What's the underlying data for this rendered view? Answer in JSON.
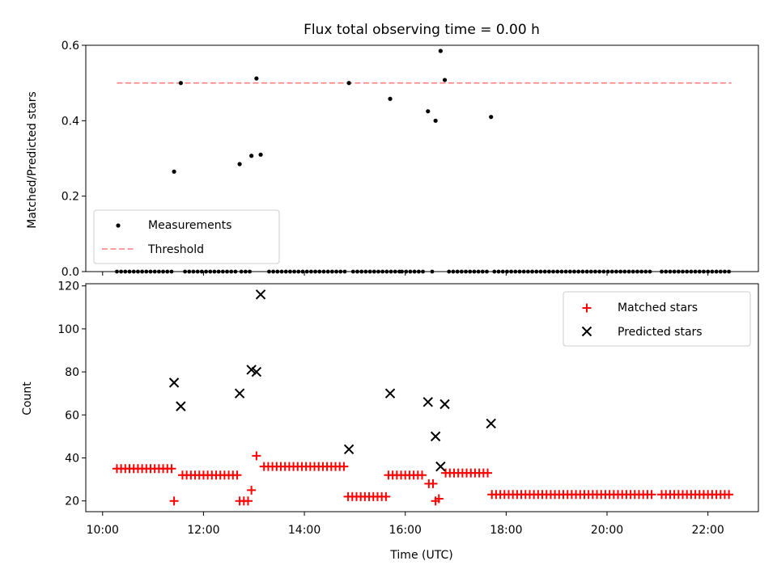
{
  "chart_data": [
    {
      "type": "scatter",
      "title": "Flux total observing time = 0.00 h",
      "xlabel": "",
      "ylabel": "Matched/Predicted stars",
      "xlim": [
        "09:40",
        "23:00"
      ],
      "ylim": [
        0,
        0.6
      ],
      "yticks": [
        "0.0",
        "0.2",
        "0.4",
        "0.6"
      ],
      "legend": {
        "position": "lower-left",
        "entries": [
          {
            "label": "Measurements",
            "marker": "dot",
            "color": "#000000"
          },
          {
            "label": "Threshold",
            "marker": "dashed-line",
            "color": "#ff7f7f"
          }
        ]
      },
      "series": [
        {
          "name": "Measurements",
          "color": "#000000",
          "points": [
            [
              "11:25",
              0.265
            ],
            [
              "11:33",
              0.5
            ],
            [
              "12:43",
              0.285
            ],
            [
              "12:57",
              0.307
            ],
            [
              "13:03",
              0.512
            ],
            [
              "13:08",
              0.31
            ],
            [
              "14:53",
              0.5
            ],
            [
              "15:42",
              0.458
            ],
            [
              "16:27",
              0.425
            ],
            [
              "16:36",
              0.4
            ],
            [
              "16:42",
              0.585
            ],
            [
              "16:47",
              0.508
            ],
            [
              "17:42",
              0.41
            ]
          ],
          "zero_runs": [
            {
              "start": "10:17",
              "end": "11:24",
              "step_min": 5
            },
            {
              "start": "11:38",
              "end": "12:40",
              "step_min": 5
            },
            {
              "start": "12:45",
              "end": "12:58",
              "step_min": 5
            },
            {
              "start": "13:18",
              "end": "14:50",
              "step_min": 5
            },
            {
              "start": "14:58",
              "end": "15:55",
              "step_min": 5
            },
            {
              "start": "15:56",
              "end": "16:24",
              "step_min": 5
            },
            {
              "start": "16:32",
              "end": "16:32",
              "step_min": 5
            },
            {
              "start": "16:52",
              "end": "17:38",
              "step_min": 5
            },
            {
              "start": "17:46",
              "end": "20:55",
              "step_min": 5
            },
            {
              "start": "21:05",
              "end": "22:28",
              "step_min": 5
            }
          ]
        },
        {
          "name": "Threshold",
          "color": "#ff7f7f",
          "points": [
            [
              "10:17",
              0.5
            ],
            [
              "22:28",
              0.5
            ]
          ]
        }
      ]
    },
    {
      "type": "scatter",
      "title": "",
      "xlabel": "Time (UTC)",
      "ylabel": "Count",
      "xlim": [
        "09:40",
        "23:00"
      ],
      "ylim": [
        15,
        121
      ],
      "xticks": [
        "10:00",
        "12:00",
        "14:00",
        "16:00",
        "18:00",
        "20:00",
        "22:00"
      ],
      "yticks": [
        "20",
        "40",
        "60",
        "80",
        "100",
        "120"
      ],
      "legend": {
        "position": "upper-right",
        "entries": [
          {
            "label": "Matched stars",
            "marker": "plus",
            "color": "#ff0000"
          },
          {
            "label": "Predicted stars",
            "marker": "x",
            "color": "#000000"
          }
        ]
      },
      "series": [
        {
          "name": "Matched stars",
          "color": "#ff0000",
          "runs": [
            {
              "start": "10:17",
              "end": "11:24",
              "step_min": 5,
              "value": 35
            },
            {
              "start": "11:35",
              "end": "12:40",
              "step_min": 5,
              "value": 32
            },
            {
              "start": "12:43",
              "end": "12:53",
              "step_min": 5,
              "value": 20
            },
            {
              "start": "13:12",
              "end": "14:50",
              "step_min": 5,
              "value": 36
            },
            {
              "start": "14:52",
              "end": "15:38",
              "step_min": 5,
              "value": 22
            },
            {
              "start": "15:40",
              "end": "16:24",
              "step_min": 5,
              "value": 32
            },
            {
              "start": "16:28",
              "end": "16:34",
              "step_min": 5,
              "value": 28
            },
            {
              "start": "16:48",
              "end": "17:38",
              "step_min": 5,
              "value": 33
            },
            {
              "start": "17:43",
              "end": "20:55",
              "step_min": 5,
              "value": 23
            },
            {
              "start": "21:05",
              "end": "22:28",
              "step_min": 5,
              "value": 23
            }
          ],
          "points": [
            [
              "11:25",
              20
            ],
            [
              "12:57",
              25
            ],
            [
              "13:03",
              41
            ],
            [
              "16:36",
              20
            ],
            [
              "16:40",
              21
            ]
          ]
        },
        {
          "name": "Predicted stars",
          "color": "#000000",
          "points": [
            [
              "11:25",
              75
            ],
            [
              "11:33",
              64
            ],
            [
              "12:43",
              70
            ],
            [
              "12:57",
              81
            ],
            [
              "13:03",
              80
            ],
            [
              "13:08",
              116
            ],
            [
              "14:53",
              44
            ],
            [
              "15:42",
              70
            ],
            [
              "16:27",
              66
            ],
            [
              "16:36",
              50
            ],
            [
              "16:42",
              36
            ],
            [
              "16:47",
              65
            ],
            [
              "17:42",
              56
            ]
          ]
        }
      ]
    }
  ]
}
